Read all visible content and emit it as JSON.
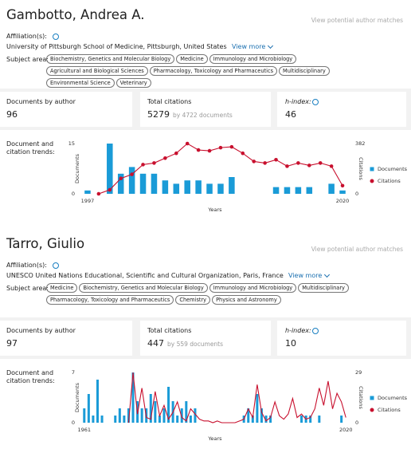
{
  "profiles": [
    {
      "name": "Gambotto, Andrea A.",
      "matches": "View potential author matches",
      "affiliation_label": "Affiliation(s):",
      "affiliation": "University of Pittsburgh School of Medicine, Pittsburgh, United States",
      "view_more": "View more",
      "subject_label": "Subject area:",
      "subjects": [
        "Biochemistry, Genetics and Molecular Biology",
        "Medicine",
        "Immunology and Microbiology",
        "Agricultural and Biological Sciences",
        "Pharmacology, Toxicology and Pharmaceutics",
        "Multidisciplinary",
        "Environmental Science",
        "Veterinary"
      ],
      "documents_label": "Documents by author",
      "documents": 96,
      "citations_label": "Total citations",
      "citations": 5279,
      "citations_by": "by 4722 documents",
      "h_label": "h-index:",
      "h_index": 46,
      "trends_label": "Document and citation trends:"
    },
    {
      "name": "Tarro, Giulio",
      "matches": "View potential author matches",
      "affiliation_label": "Affiliation(s):",
      "affiliation": "UNESCO United Nations Educational, Scientific and Cultural Organization, Paris, France",
      "view_more": "View more",
      "subject_label": "Subject area:",
      "subjects": [
        "Medicine",
        "Biochemistry, Genetics and Molecular Biology",
        "Immunology and Microbiology",
        "Multidisciplinary",
        "Pharmacology, Toxicology and Pharmaceutics",
        "Chemistry",
        "Physics and Astronomy"
      ],
      "documents_label": "Documents by author",
      "documents": 97,
      "citations_label": "Total citations",
      "citations": 447,
      "citations_by": "by 559 documents",
      "h_label": "h-index:",
      "h_index": 10,
      "trends_label": "Document and citation trends:"
    }
  ],
  "chart_data": [
    {
      "type": "bar",
      "x_label": "Years",
      "y_label": "Documents",
      "y2_label": "Citations",
      "legend": "right",
      "markers": true,
      "x": [
        1997,
        1998,
        1999,
        2000,
        2001,
        2002,
        2003,
        2004,
        2005,
        2006,
        2007,
        2008,
        2009,
        2010,
        2011,
        2012,
        2013,
        2014,
        2015,
        2016,
        2017,
        2018,
        2019,
        2020
      ],
      "xlim": [
        1996.5,
        2020.5
      ],
      "xticks": [
        1997,
        2020
      ],
      "ylim": [
        0,
        15
      ],
      "yticks": [
        0,
        15
      ],
      "y2lim": [
        0,
        382
      ],
      "y2ticks": [
        0,
        382
      ],
      "series": [
        {
          "name": "Documents",
          "color": "#1a9bd7",
          "values": [
            1,
            0,
            15,
            6,
            8,
            6,
            6,
            4,
            3,
            4,
            4,
            3,
            3,
            5,
            0,
            0,
            0,
            2,
            2,
            2,
            2,
            0,
            3,
            1
          ]
        },
        {
          "name": "Citations",
          "color": "#c8102e",
          "axis": "y2",
          "values": [
            null,
            0,
            30,
            117,
            148,
            222,
            234,
            271,
            308,
            382,
            333,
            327,
            351,
            357,
            308,
            246,
            234,
            259,
            210,
            234,
            216,
            234,
            210,
            62
          ]
        }
      ]
    },
    {
      "type": "bar",
      "x_label": "Years",
      "y_label": "Documents",
      "y2_label": "Citations",
      "legend": "right",
      "markers": false,
      "x": [
        1961,
        1962,
        1963,
        1964,
        1965,
        1966,
        1967,
        1968,
        1969,
        1970,
        1971,
        1972,
        1973,
        1974,
        1975,
        1976,
        1977,
        1978,
        1979,
        1980,
        1981,
        1982,
        1983,
        1984,
        1985,
        1986,
        1987,
        1988,
        1989,
        1990,
        1991,
        1992,
        1993,
        1994,
        1995,
        1996,
        1997,
        1998,
        1999,
        2000,
        2001,
        2002,
        2003,
        2004,
        2005,
        2006,
        2007,
        2008,
        2009,
        2010,
        2011,
        2012,
        2013,
        2014,
        2015,
        2016,
        2017,
        2018,
        2019,
        2020
      ],
      "xlim": [
        1960.5,
        2020.5
      ],
      "xticks": [
        1961,
        2020
      ],
      "ylim": [
        0,
        7
      ],
      "yticks": [
        0,
        7
      ],
      "y2lim": [
        0,
        29
      ],
      "y2ticks": [
        0,
        29
      ],
      "series": [
        {
          "name": "Documents",
          "color": "#1a9bd7",
          "values": [
            2,
            4,
            1,
            6,
            1,
            0,
            0,
            1,
            2,
            1,
            2,
            7,
            3,
            2,
            2,
            4,
            3,
            1,
            2,
            5,
            3,
            1,
            2,
            3,
            1,
            2,
            0,
            0,
            0,
            0,
            0,
            0,
            0,
            0,
            0,
            0,
            1,
            2,
            1,
            4,
            2,
            1,
            1,
            0,
            0,
            0,
            0,
            0,
            0,
            1,
            1,
            1,
            0,
            1,
            0,
            0,
            0,
            0,
            1,
            0
          ]
        },
        {
          "name": "Citations",
          "color": "#c8102e",
          "axis": "y2",
          "values": [
            null,
            null,
            null,
            null,
            null,
            null,
            null,
            null,
            null,
            null,
            0,
            29,
            5,
            20,
            3,
            2,
            18,
            4,
            10,
            2,
            6,
            12,
            3,
            1,
            8,
            5,
            2,
            1,
            1,
            0,
            1,
            0,
            0,
            0,
            0,
            1,
            2,
            8,
            3,
            22,
            6,
            1,
            3,
            12,
            4,
            2,
            5,
            14,
            3,
            5,
            2,
            3,
            8,
            20,
            10,
            24,
            8,
            17,
            12,
            3
          ]
        }
      ]
    }
  ]
}
